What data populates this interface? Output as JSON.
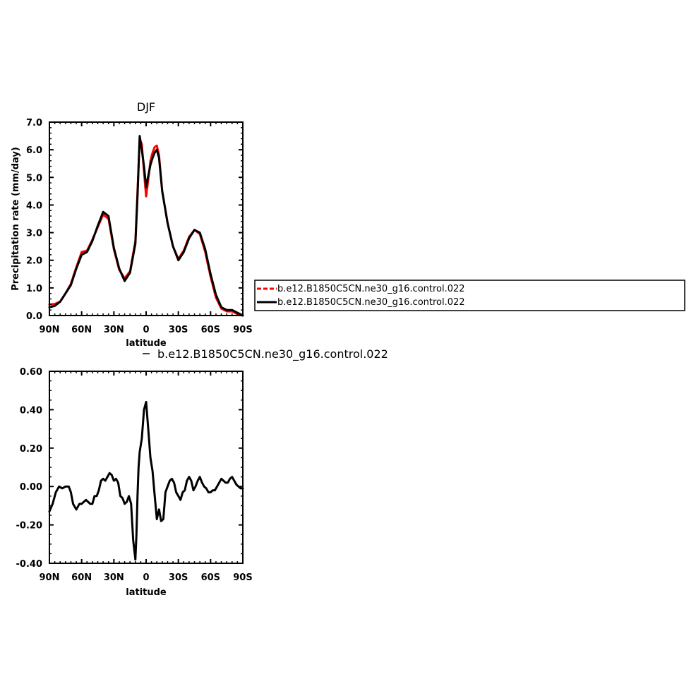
{
  "chart_data": [
    {
      "type": "line",
      "title": "DJF",
      "xlabel": "latitude",
      "ylabel": "Precipitation rate (mm/day)",
      "xlim": [
        90,
        -90
      ],
      "ylim": [
        0,
        7
      ],
      "x_ticks": [
        90,
        60,
        30,
        0,
        -30,
        -60,
        -90
      ],
      "x_tick_labels": [
        "90N",
        "60N",
        "30N",
        "0",
        "30S",
        "60S",
        "90S"
      ],
      "y_ticks": [
        0,
        1,
        2,
        3,
        4,
        5,
        6,
        7
      ],
      "y_tick_labels": [
        "0.0",
        "1.0",
        "2.0",
        "3.0",
        "4.0",
        "5.0",
        "6.0",
        "7.0"
      ],
      "legend_position": "right",
      "series": [
        {
          "name": "b.e12.B1850C5CN.ne30_g16.control.022",
          "color": "#ff0000",
          "dash": "dashed",
          "x": [
            90,
            85,
            80,
            75,
            70,
            65,
            60,
            55,
            50,
            45,
            40,
            35,
            30,
            25,
            20,
            15,
            10,
            8,
            6,
            4,
            2,
            0,
            -2,
            -4,
            -6,
            -8,
            -10,
            -12,
            -15,
            -20,
            -25,
            -30,
            -35,
            -40,
            -45,
            -50,
            -55,
            -60,
            -65,
            -70,
            -75,
            -80,
            -85,
            -90
          ],
          "y": [
            0.4,
            0.42,
            0.5,
            0.8,
            1.15,
            1.75,
            2.3,
            2.35,
            2.75,
            3.2,
            3.65,
            3.5,
            2.4,
            1.65,
            1.35,
            1.6,
            2.7,
            4.5,
            6.4,
            6.2,
            5.2,
            4.3,
            4.9,
            5.6,
            5.9,
            6.1,
            6.15,
            5.8,
            4.5,
            3.35,
            2.5,
            2.05,
            2.35,
            2.85,
            3.1,
            2.95,
            2.3,
            1.4,
            0.65,
            0.25,
            0.15,
            0.15,
            0.05,
            0.0
          ]
        },
        {
          "name": "b.e12.B1850C5CN.ne30_g16.control.022",
          "color": "#000000",
          "dash": "solid",
          "x": [
            90,
            85,
            80,
            75,
            70,
            65,
            60,
            55,
            50,
            45,
            40,
            35,
            30,
            25,
            20,
            15,
            10,
            8,
            6,
            4,
            2,
            0,
            -2,
            -4,
            -6,
            -8,
            -10,
            -12,
            -15,
            -20,
            -25,
            -30,
            -35,
            -40,
            -45,
            -50,
            -55,
            -60,
            -65,
            -70,
            -75,
            -80,
            -85,
            -90
          ],
          "y": [
            0.3,
            0.35,
            0.5,
            0.8,
            1.1,
            1.7,
            2.2,
            2.3,
            2.7,
            3.25,
            3.75,
            3.6,
            2.45,
            1.7,
            1.25,
            1.55,
            2.6,
            4.3,
            6.5,
            6.0,
            5.4,
            4.65,
            5.05,
            5.45,
            5.7,
            5.9,
            6.0,
            5.7,
            4.5,
            3.35,
            2.5,
            2.0,
            2.3,
            2.8,
            3.1,
            3.0,
            2.4,
            1.5,
            0.75,
            0.3,
            0.2,
            0.2,
            0.1,
            0.0
          ]
        }
      ]
    },
    {
      "type": "line",
      "title": "b.e12.B1850C5CN.ne30_g16.control.022",
      "xlabel": "latitude",
      "ylabel": "",
      "xlim": [
        90,
        -90
      ],
      "ylim": [
        -0.4,
        0.6
      ],
      "x_ticks": [
        90,
        60,
        30,
        0,
        -30,
        -60,
        -90
      ],
      "x_tick_labels": [
        "90N",
        "60N",
        "30N",
        "0",
        "30S",
        "60S",
        "90S"
      ],
      "y_ticks": [
        -0.4,
        -0.2,
        0.0,
        0.2,
        0.4,
        0.6
      ],
      "y_tick_labels": [
        "-0.40",
        "-0.20",
        "0.00",
        "0.20",
        "0.40",
        "0.60"
      ],
      "series": [
        {
          "name": "b.e12.B1850C5CN.ne30_g16.control.022",
          "color": "#000000",
          "dash": "solid",
          "x": [
            90,
            87,
            84,
            81,
            78,
            75,
            72,
            70,
            68,
            65,
            62,
            60,
            58,
            56,
            54,
            52,
            50,
            48,
            46,
            44,
            42,
            40,
            38,
            36,
            34,
            32,
            30,
            28,
            26,
            24,
            22,
            20,
            18,
            16,
            14,
            12,
            10,
            9,
            8,
            7,
            6,
            4,
            2,
            0,
            -2,
            -4,
            -6,
            -8,
            -10,
            -12,
            -14,
            -16,
            -18,
            -20,
            -22,
            -24,
            -26,
            -28,
            -30,
            -32,
            -34,
            -36,
            -38,
            -40,
            -42,
            -44,
            -46,
            -48,
            -50,
            -52,
            -54,
            -56,
            -58,
            -60,
            -62,
            -64,
            -66,
            -68,
            -70,
            -72,
            -74,
            -76,
            -78,
            -80,
            -82,
            -84,
            -86,
            -88,
            -90
          ],
          "y": [
            -0.13,
            -0.09,
            -0.03,
            0.0,
            -0.01,
            0.0,
            0.0,
            -0.03,
            -0.09,
            -0.12,
            -0.09,
            -0.09,
            -0.08,
            -0.07,
            -0.08,
            -0.09,
            -0.09,
            -0.05,
            -0.05,
            -0.02,
            0.03,
            0.04,
            0.03,
            0.05,
            0.07,
            0.06,
            0.03,
            0.04,
            0.02,
            -0.05,
            -0.06,
            -0.09,
            -0.08,
            -0.05,
            -0.09,
            -0.28,
            -0.38,
            -0.25,
            -0.05,
            0.1,
            0.18,
            0.25,
            0.4,
            0.44,
            0.3,
            0.15,
            0.08,
            -0.05,
            -0.17,
            -0.12,
            -0.18,
            -0.17,
            -0.03,
            0.0,
            0.03,
            0.04,
            0.02,
            -0.03,
            -0.05,
            -0.07,
            -0.03,
            -0.02,
            0.03,
            0.05,
            0.03,
            -0.02,
            0.0,
            0.03,
            0.05,
            0.02,
            0.0,
            -0.01,
            -0.03,
            -0.03,
            -0.02,
            -0.02,
            0.0,
            0.02,
            0.04,
            0.03,
            0.02,
            0.02,
            0.04,
            0.05,
            0.03,
            0.01,
            0.0,
            -0.01,
            -0.01
          ]
        }
      ]
    }
  ]
}
